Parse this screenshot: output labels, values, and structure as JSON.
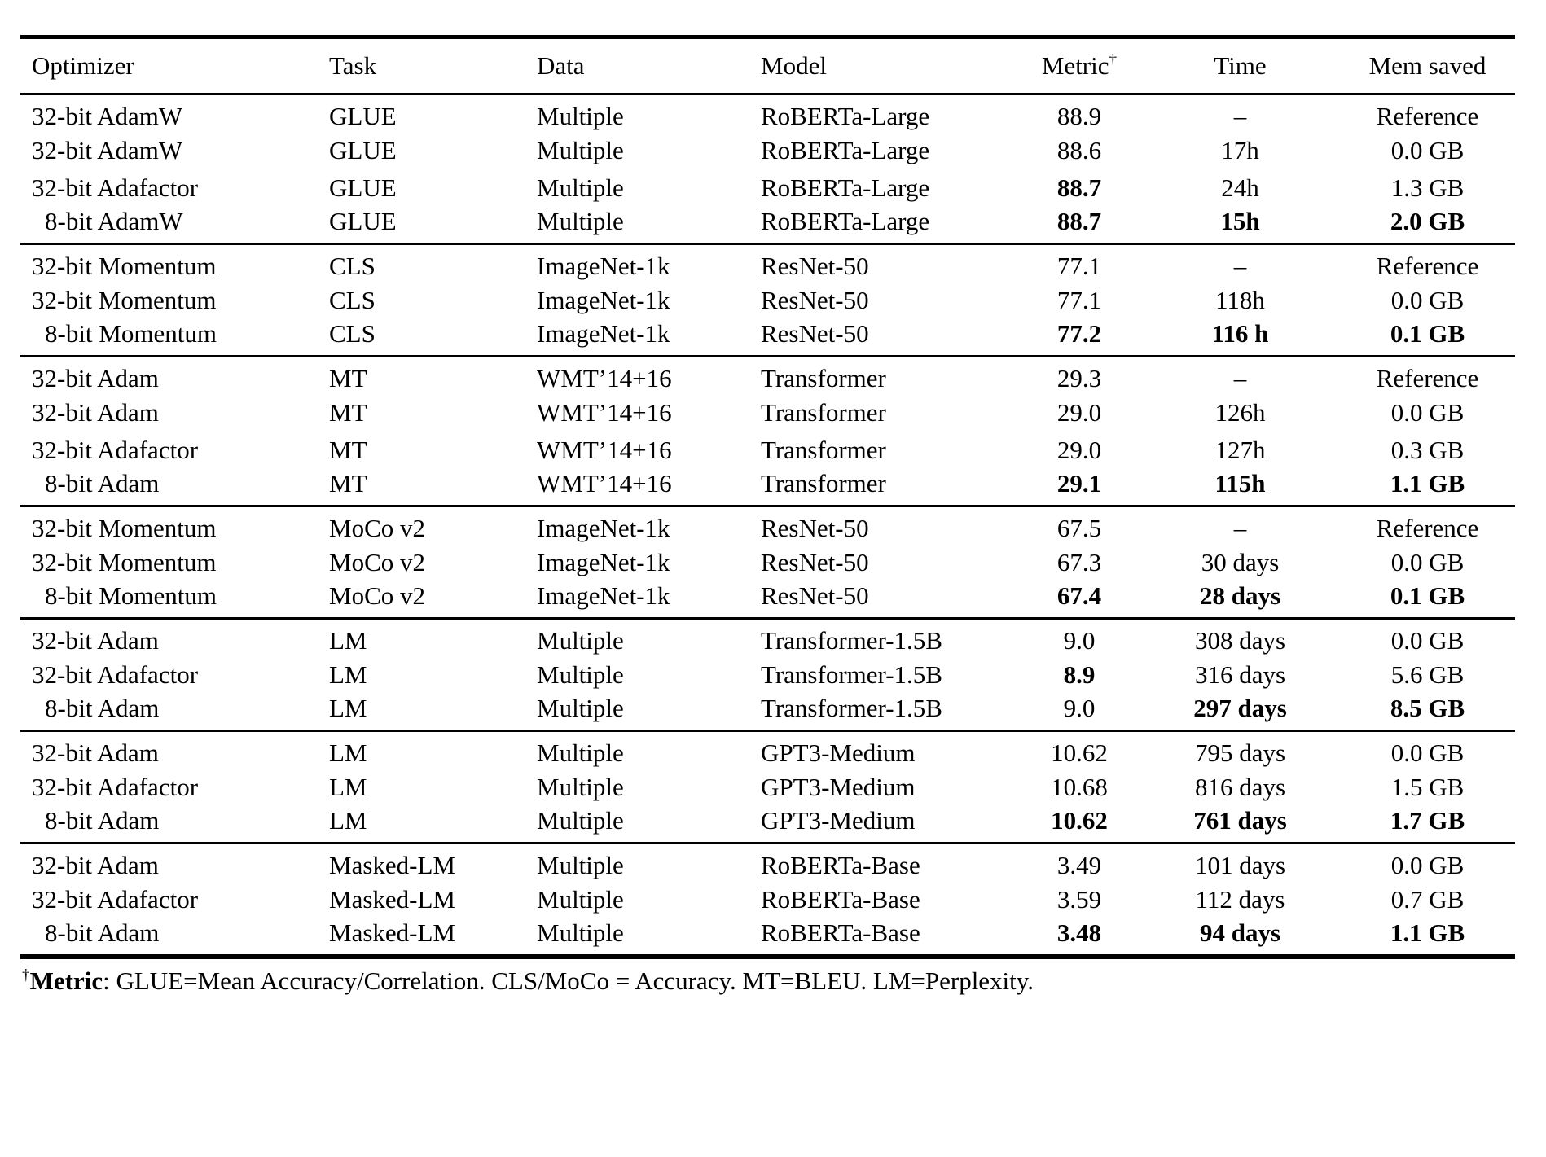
{
  "colors": {
    "text": "#000000",
    "background": "#ffffff",
    "rule": "#000000"
  },
  "table": {
    "columns": [
      {
        "label": "Optimizer"
      },
      {
        "label": "Task"
      },
      {
        "label": "Data"
      },
      {
        "label": "Model"
      },
      {
        "label": "Metric",
        "sup": "†"
      },
      {
        "label": "Time"
      },
      {
        "label": "Mem saved"
      }
    ],
    "groups": [
      {
        "rows": [
          {
            "optimizer": "32-bit AdamW",
            "indent": false,
            "task": "GLUE",
            "data": "Multiple",
            "model": "RoBERTa-Large",
            "metric": "88.9",
            "metric_bold": false,
            "time": "–",
            "time_bold": false,
            "mem": "Reference",
            "mem_bold": false
          },
          {
            "optimizer": "32-bit AdamW",
            "indent": false,
            "task": "GLUE",
            "data": "Multiple",
            "model": "RoBERTa-Large",
            "metric": "88.6",
            "metric_bold": false,
            "time": "17h",
            "time_bold": false,
            "mem": "0.0 GB",
            "mem_bold": false
          },
          {
            "optimizer": "32-bit Adafactor",
            "indent": false,
            "task": "GLUE",
            "data": "Multiple",
            "model": "RoBERTa-Large",
            "metric": "88.7",
            "metric_bold": true,
            "time": "24h",
            "time_bold": false,
            "mem": "1.3 GB",
            "mem_bold": false
          },
          {
            "optimizer": "8-bit AdamW",
            "indent": true,
            "task": "GLUE",
            "data": "Multiple",
            "model": "RoBERTa-Large",
            "metric": "88.7",
            "metric_bold": true,
            "time": "15h",
            "time_bold": true,
            "mem": "2.0 GB",
            "mem_bold": true
          }
        ]
      },
      {
        "rows": [
          {
            "optimizer": "32-bit Momentum",
            "indent": false,
            "task": "CLS",
            "data": "ImageNet-1k",
            "model": "ResNet-50",
            "metric": "77.1",
            "metric_bold": false,
            "time": "–",
            "time_bold": false,
            "mem": "Reference",
            "mem_bold": false
          },
          {
            "optimizer": "32-bit Momentum",
            "indent": false,
            "task": "CLS",
            "data": "ImageNet-1k",
            "model": "ResNet-50",
            "metric": "77.1",
            "metric_bold": false,
            "time": "118h",
            "time_bold": false,
            "mem": "0.0 GB",
            "mem_bold": false
          },
          {
            "optimizer": "8-bit Momentum",
            "indent": true,
            "task": "CLS",
            "data": "ImageNet-1k",
            "model": "ResNet-50",
            "metric": "77.2",
            "metric_bold": true,
            "time": "116 h",
            "time_bold": true,
            "mem": "0.1 GB",
            "mem_bold": true
          }
        ]
      },
      {
        "rows": [
          {
            "optimizer": "32-bit Adam",
            "indent": false,
            "task": "MT",
            "data": "WMT’14+16",
            "model": "Transformer",
            "metric": "29.3",
            "metric_bold": false,
            "time": "–",
            "time_bold": false,
            "mem": "Reference",
            "mem_bold": false
          },
          {
            "optimizer": "32-bit Adam",
            "indent": false,
            "task": "MT",
            "data": "WMT’14+16",
            "model": "Transformer",
            "metric": "29.0",
            "metric_bold": false,
            "time": "126h",
            "time_bold": false,
            "mem": "0.0 GB",
            "mem_bold": false
          },
          {
            "optimizer": "32-bit Adafactor",
            "indent": false,
            "task": "MT",
            "data": "WMT’14+16",
            "model": "Transformer",
            "metric": "29.0",
            "metric_bold": false,
            "time": "127h",
            "time_bold": false,
            "mem": "0.3 GB",
            "mem_bold": false
          },
          {
            "optimizer": "8-bit Adam",
            "indent": true,
            "task": "MT",
            "data": "WMT’14+16",
            "model": "Transformer",
            "metric": "29.1",
            "metric_bold": true,
            "time": "115h",
            "time_bold": true,
            "mem": "1.1 GB",
            "mem_bold": true
          }
        ]
      },
      {
        "rows": [
          {
            "optimizer": "32-bit Momentum",
            "indent": false,
            "task": "MoCo v2",
            "data": "ImageNet-1k",
            "model": "ResNet-50",
            "metric": "67.5",
            "metric_bold": false,
            "time": "–",
            "time_bold": false,
            "mem": "Reference",
            "mem_bold": false
          },
          {
            "optimizer": "32-bit Momentum",
            "indent": false,
            "task": "MoCo v2",
            "data": "ImageNet-1k",
            "model": "ResNet-50",
            "metric": "67.3",
            "metric_bold": false,
            "time": "30 days",
            "time_bold": false,
            "mem": "0.0 GB",
            "mem_bold": false
          },
          {
            "optimizer": "8-bit Momentum",
            "indent": true,
            "task": "MoCo v2",
            "data": "ImageNet-1k",
            "model": "ResNet-50",
            "metric": "67.4",
            "metric_bold": true,
            "time": "28 days",
            "time_bold": true,
            "mem": "0.1 GB",
            "mem_bold": true
          }
        ]
      },
      {
        "rows": [
          {
            "optimizer": "32-bit Adam",
            "indent": false,
            "task": "LM",
            "data": "Multiple",
            "model": "Transformer-1.5B",
            "metric": "9.0",
            "metric_bold": false,
            "time": "308 days",
            "time_bold": false,
            "mem": "0.0 GB",
            "mem_bold": false
          },
          {
            "optimizer": "32-bit Adafactor",
            "indent": false,
            "task": "LM",
            "data": "Multiple",
            "model": "Transformer-1.5B",
            "metric": "8.9",
            "metric_bold": true,
            "time": "316 days",
            "time_bold": false,
            "mem": "5.6 GB",
            "mem_bold": false
          },
          {
            "optimizer": "8-bit Adam",
            "indent": true,
            "task": "LM",
            "data": "Multiple",
            "model": "Transformer-1.5B",
            "metric": "9.0",
            "metric_bold": false,
            "time": "297 days",
            "time_bold": true,
            "mem": "8.5 GB",
            "mem_bold": true
          }
        ]
      },
      {
        "rows": [
          {
            "optimizer": "32-bit Adam",
            "indent": false,
            "task": "LM",
            "data": "Multiple",
            "model": "GPT3-Medium",
            "metric": "10.62",
            "metric_bold": false,
            "time": "795 days",
            "time_bold": false,
            "mem": "0.0 GB",
            "mem_bold": false
          },
          {
            "optimizer": "32-bit Adafactor",
            "indent": false,
            "task": "LM",
            "data": "Multiple",
            "model": "GPT3-Medium",
            "metric": "10.68",
            "metric_bold": false,
            "time": "816 days",
            "time_bold": false,
            "mem": "1.5 GB",
            "mem_bold": false
          },
          {
            "optimizer": "8-bit Adam",
            "indent": true,
            "task": "LM",
            "data": "Multiple",
            "model": "GPT3-Medium",
            "metric": "10.62",
            "metric_bold": true,
            "time": "761 days",
            "time_bold": true,
            "mem": "1.7 GB",
            "mem_bold": true
          }
        ]
      },
      {
        "rows": [
          {
            "optimizer": "32-bit Adam",
            "indent": false,
            "task": "Masked-LM",
            "data": "Multiple",
            "model": "RoBERTa-Base",
            "metric": "3.49",
            "metric_bold": false,
            "time": "101 days",
            "time_bold": false,
            "mem": "0.0 GB",
            "mem_bold": false
          },
          {
            "optimizer": "32-bit Adafactor",
            "indent": false,
            "task": "Masked-LM",
            "data": "Multiple",
            "model": "RoBERTa-Base",
            "metric": "3.59",
            "metric_bold": false,
            "time": "112 days",
            "time_bold": false,
            "mem": "0.7 GB",
            "mem_bold": false
          },
          {
            "optimizer": "8-bit Adam",
            "indent": true,
            "task": "Masked-LM",
            "data": "Multiple",
            "model": "RoBERTa-Base",
            "metric": "3.48",
            "metric_bold": true,
            "time": "94 days",
            "time_bold": true,
            "mem": "1.1 GB",
            "mem_bold": true
          }
        ]
      }
    ]
  },
  "footnote": {
    "dagger": "†",
    "label": "Metric",
    "text": ": GLUE=Mean Accuracy/Correlation. CLS/MoCo = Accuracy. MT=BLEU. LM=Perplexity."
  }
}
